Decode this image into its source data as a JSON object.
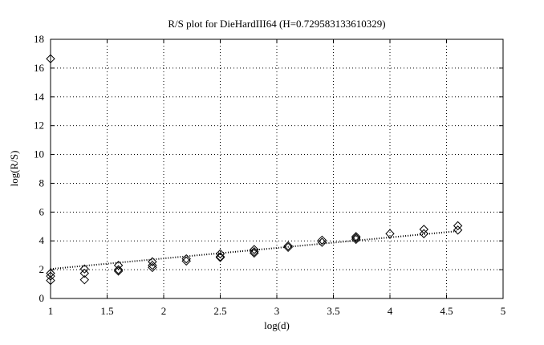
{
  "chart_data": {
    "type": "scatter",
    "title": "R/S plot for DieHardIII64 (H=0.729583133610329)",
    "xlabel": "log(d)",
    "ylabel": "log(R/S)",
    "xlim": [
      1,
      5
    ],
    "xticks": [
      1,
      1.5,
      2,
      2.5,
      3,
      3.5,
      4,
      4.5,
      5
    ],
    "ylim": [
      0,
      18
    ],
    "yticks": [
      0,
      2,
      4,
      6,
      8,
      10,
      12,
      14,
      16,
      18
    ],
    "grid": true,
    "series": [
      {
        "color": "#000000",
        "mode": "markers",
        "x": [
          1,
          1,
          1,
          1,
          1.3,
          1.3,
          1.3,
          1.6,
          1.6,
          1.6,
          1.9,
          1.9,
          1.9,
          2.2,
          2.2,
          2.5,
          2.5,
          2.5,
          2.8,
          2.8,
          2.8,
          3.1,
          3.1,
          3.4,
          3.4,
          3.7,
          3.7,
          3.7,
          4.0,
          4.3,
          4.3,
          4.6,
          4.6
        ],
        "values": [
          16.65,
          1.75,
          1.55,
          1.25,
          2.05,
          1.75,
          1.3,
          2.3,
          2.0,
          1.9,
          2.55,
          2.3,
          2.15,
          2.75,
          2.6,
          3.1,
          2.9,
          2.85,
          3.4,
          3.25,
          3.15,
          3.65,
          3.55,
          4.05,
          3.9,
          4.3,
          4.2,
          4.1,
          4.5,
          4.8,
          4.5,
          5.05,
          4.75
        ]
      },
      {
        "color": "#000000",
        "mode": "dotted-line",
        "x": [
          1,
          4.6
        ],
        "values": [
          2.05,
          4.68
        ]
      }
    ]
  }
}
